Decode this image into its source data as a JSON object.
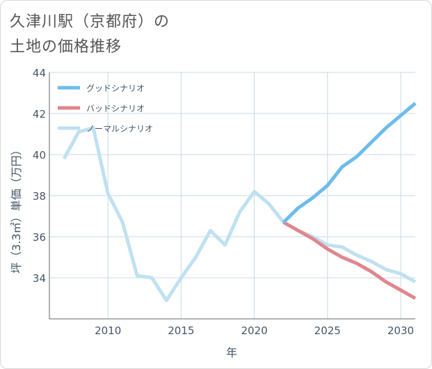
{
  "title": {
    "line1": "久津川駅（京都府）の",
    "line2": "土地の価格推移"
  },
  "chart_data": {
    "type": "line",
    "xlabel": "年",
    "ylabel": "坪（3.3㎡）単価（万円）",
    "xlim": [
      2006,
      2031
    ],
    "ylim": [
      32,
      44
    ],
    "x_ticks": [
      2010,
      2015,
      2020,
      2025,
      2030
    ],
    "y_ticks": [
      34,
      36,
      38,
      40,
      42,
      44
    ],
    "grid": true,
    "legend_position": "top-left",
    "series": [
      {
        "name": "グッドシナリオ",
        "color": "#6dbcec",
        "x": [
          2022,
          2023,
          2024,
          2025,
          2026,
          2027,
          2028,
          2029,
          2030,
          2031
        ],
        "values": [
          36.7,
          37.4,
          37.9,
          38.5,
          39.4,
          39.9,
          40.6,
          41.3,
          41.9,
          42.5
        ]
      },
      {
        "name": "バッドシナリオ",
        "color": "#e0868e",
        "x": [
          2022,
          2023,
          2024,
          2025,
          2026,
          2027,
          2028,
          2029,
          2030,
          2031
        ],
        "values": [
          36.7,
          36.3,
          35.9,
          35.4,
          35.0,
          34.7,
          34.3,
          33.8,
          33.4,
          33.0
        ]
      },
      {
        "name": "ノーマルシナリオ",
        "color": "#bfe1f0",
        "x": [
          2007,
          2008,
          2009,
          2010,
          2011,
          2012,
          2013,
          2014,
          2015,
          2016,
          2017,
          2018,
          2019,
          2020,
          2021,
          2022,
          2023,
          2024,
          2025,
          2026,
          2027,
          2028,
          2029,
          2030,
          2031
        ],
        "values": [
          39.8,
          41.1,
          41.3,
          38.1,
          36.7,
          34.1,
          34.0,
          32.9,
          34.0,
          35.0,
          36.3,
          35.6,
          37.2,
          38.2,
          37.6,
          36.7,
          36.3,
          36.0,
          35.6,
          35.5,
          35.1,
          34.8,
          34.4,
          34.2,
          33.8
        ]
      }
    ]
  }
}
